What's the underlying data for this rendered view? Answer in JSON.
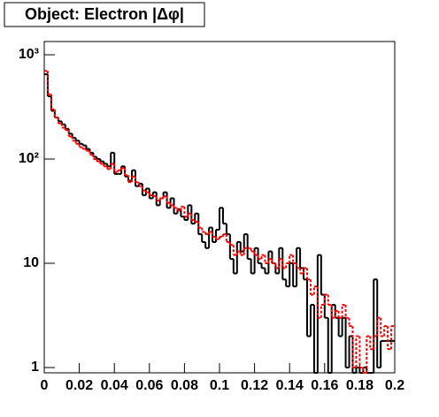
{
  "chart_data": {
    "type": "histogram",
    "title": "Object: Electron |Δφ|",
    "ylog": true,
    "xlim": [
      0,
      0.2
    ],
    "xticks": [
      0,
      0.02,
      0.04,
      0.06,
      0.08,
      0.1,
      0.12,
      0.14,
      0.16,
      0.18,
      0.2
    ],
    "ylim": [
      0.89,
      1340
    ],
    "yticks": [
      1,
      10,
      {
        "value": 100,
        "label": "10²"
      },
      {
        "value": 1000,
        "label": "10³"
      }
    ],
    "bins": [
      0,
      0.002,
      0.004,
      0.006,
      0.008,
      0.01,
      0.012,
      0.014,
      0.016,
      0.018,
      0.02,
      0.022,
      0.024,
      0.026,
      0.028,
      0.03,
      0.032,
      0.034,
      0.036,
      0.038,
      0.04,
      0.042,
      0.044,
      0.046,
      0.048,
      0.05,
      0.052,
      0.054,
      0.056,
      0.058,
      0.06,
      0.062,
      0.064,
      0.066,
      0.068,
      0.07,
      0.072,
      0.074,
      0.076,
      0.078,
      0.08,
      0.082,
      0.084,
      0.086,
      0.088,
      0.09,
      0.092,
      0.094,
      0.096,
      0.098,
      0.1,
      0.102,
      0.104,
      0.106,
      0.108,
      0.11,
      0.112,
      0.114,
      0.116,
      0.118,
      0.12,
      0.122,
      0.124,
      0.126,
      0.128,
      0.13,
      0.132,
      0.134,
      0.136,
      0.138,
      0.14,
      0.142,
      0.144,
      0.146,
      0.148,
      0.15,
      0.152,
      0.154,
      0.156,
      0.158,
      0.16,
      0.162,
      0.164,
      0.166,
      0.168,
      0.17,
      0.172,
      0.174,
      0.176,
      0.178,
      0.18,
      0.182,
      0.184,
      0.186,
      0.188,
      0.19,
      0.192,
      0.194,
      0.196,
      0.198,
      0.2
    ],
    "series": [
      {
        "color": "#000000",
        "dashed": false,
        "values": [
          650,
          400,
          290,
          250,
          230,
          215,
          195,
          175,
          160,
          150,
          140,
          135,
          125,
          115,
          105,
          100,
          95,
          90,
          85,
          115,
          72,
          72,
          85,
          68,
          62,
          78,
          55,
          58,
          45,
          52,
          42,
          48,
          36,
          42,
          48,
          34,
          42,
          30,
          33,
          28,
          26,
          36,
          24,
          30,
          19,
          16,
          14,
          22,
          16,
          21,
          34,
          24,
          19,
          11,
          8,
          16,
          13,
          19,
          11,
          8,
          14,
          10,
          9,
          8,
          13,
          10,
          8,
          14,
          7,
          6,
          10,
          6,
          14,
          9,
          7,
          2,
          4,
          0,
          12,
          5,
          3,
          0,
          4,
          3,
          2,
          3,
          1,
          2,
          0,
          1,
          0,
          1,
          0,
          0,
          7,
          1,
          1.8,
          1.8,
          1.8,
          1.8
        ]
      },
      {
        "color": "#ff0000",
        "dashed": true,
        "values": [
          700,
          420,
          300,
          250,
          220,
          200,
          190,
          165,
          150,
          140,
          130,
          125,
          120,
          110,
          100,
          95,
          90,
          85,
          80,
          90,
          75,
          78,
          82,
          70,
          60,
          68,
          60,
          55,
          50,
          48,
          45,
          44,
          40,
          42,
          44,
          38,
          36,
          34,
          32,
          35,
          28,
          30,
          26,
          25,
          22,
          20,
          19,
          20,
          18,
          17,
          18,
          19,
          16,
          15,
          12,
          13,
          12,
          14,
          14,
          13,
          12,
          11,
          12,
          10,
          11,
          10,
          9,
          11,
          9,
          10,
          12,
          10,
          9,
          8,
          9,
          7,
          5,
          6,
          3,
          4,
          5,
          4,
          3,
          3.5,
          3,
          4,
          3,
          2.5,
          1,
          2,
          1,
          0.7,
          2,
          1.5,
          2,
          3,
          2,
          2.5,
          1.5,
          2.5
        ]
      }
    ]
  }
}
